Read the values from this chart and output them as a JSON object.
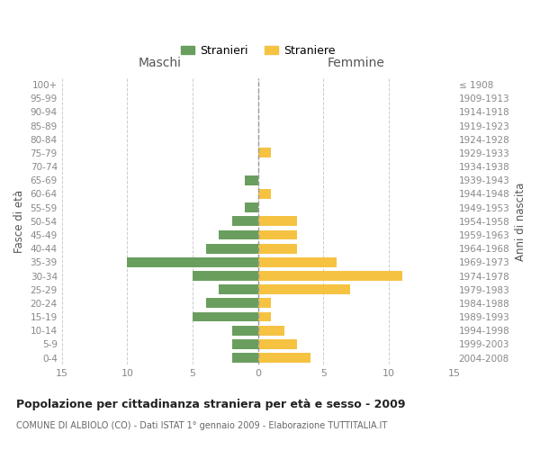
{
  "age_groups_bottom_to_top": [
    "0-4",
    "5-9",
    "10-14",
    "15-19",
    "20-24",
    "25-29",
    "30-34",
    "35-39",
    "40-44",
    "45-49",
    "50-54",
    "55-59",
    "60-64",
    "65-69",
    "70-74",
    "75-79",
    "80-84",
    "85-89",
    "90-94",
    "95-99",
    "100+"
  ],
  "birth_years_bottom_to_top": [
    "2004-2008",
    "1999-2003",
    "1994-1998",
    "1989-1993",
    "1984-1988",
    "1979-1983",
    "1974-1978",
    "1969-1973",
    "1964-1968",
    "1959-1963",
    "1954-1958",
    "1949-1953",
    "1944-1948",
    "1939-1943",
    "1934-1938",
    "1929-1933",
    "1924-1928",
    "1919-1923",
    "1914-1918",
    "1909-1913",
    "≤ 1908"
  ],
  "maschi_bottom_to_top": [
    2,
    2,
    2,
    5,
    4,
    3,
    5,
    10,
    4,
    3,
    2,
    1,
    0,
    1,
    0,
    0,
    0,
    0,
    0,
    0,
    0
  ],
  "femmine_bottom_to_top": [
    4,
    3,
    2,
    1,
    1,
    7,
    11,
    6,
    3,
    3,
    3,
    0,
    1,
    0,
    0,
    1,
    0,
    0,
    0,
    0,
    0
  ],
  "male_color": "#6a9e5e",
  "female_color": "#f5c242",
  "title": "Popolazione per cittadinanza straniera per età e sesso - 2009",
  "subtitle": "COMUNE DI ALBIOLO (CO) - Dati ISTAT 1° gennaio 2009 - Elaborazione TUTTITALIA.IT",
  "header_left": "Maschi",
  "header_right": "Femmine",
  "ylabel_left": "Fasce di età",
  "ylabel_right": "Anni di nascita",
  "xlim": 15,
  "legend_stranieri": "Stranieri",
  "legend_straniere": "Straniere",
  "background_color": "#ffffff",
  "grid_color": "#cccccc",
  "tick_color": "#888888",
  "text_color": "#555555"
}
